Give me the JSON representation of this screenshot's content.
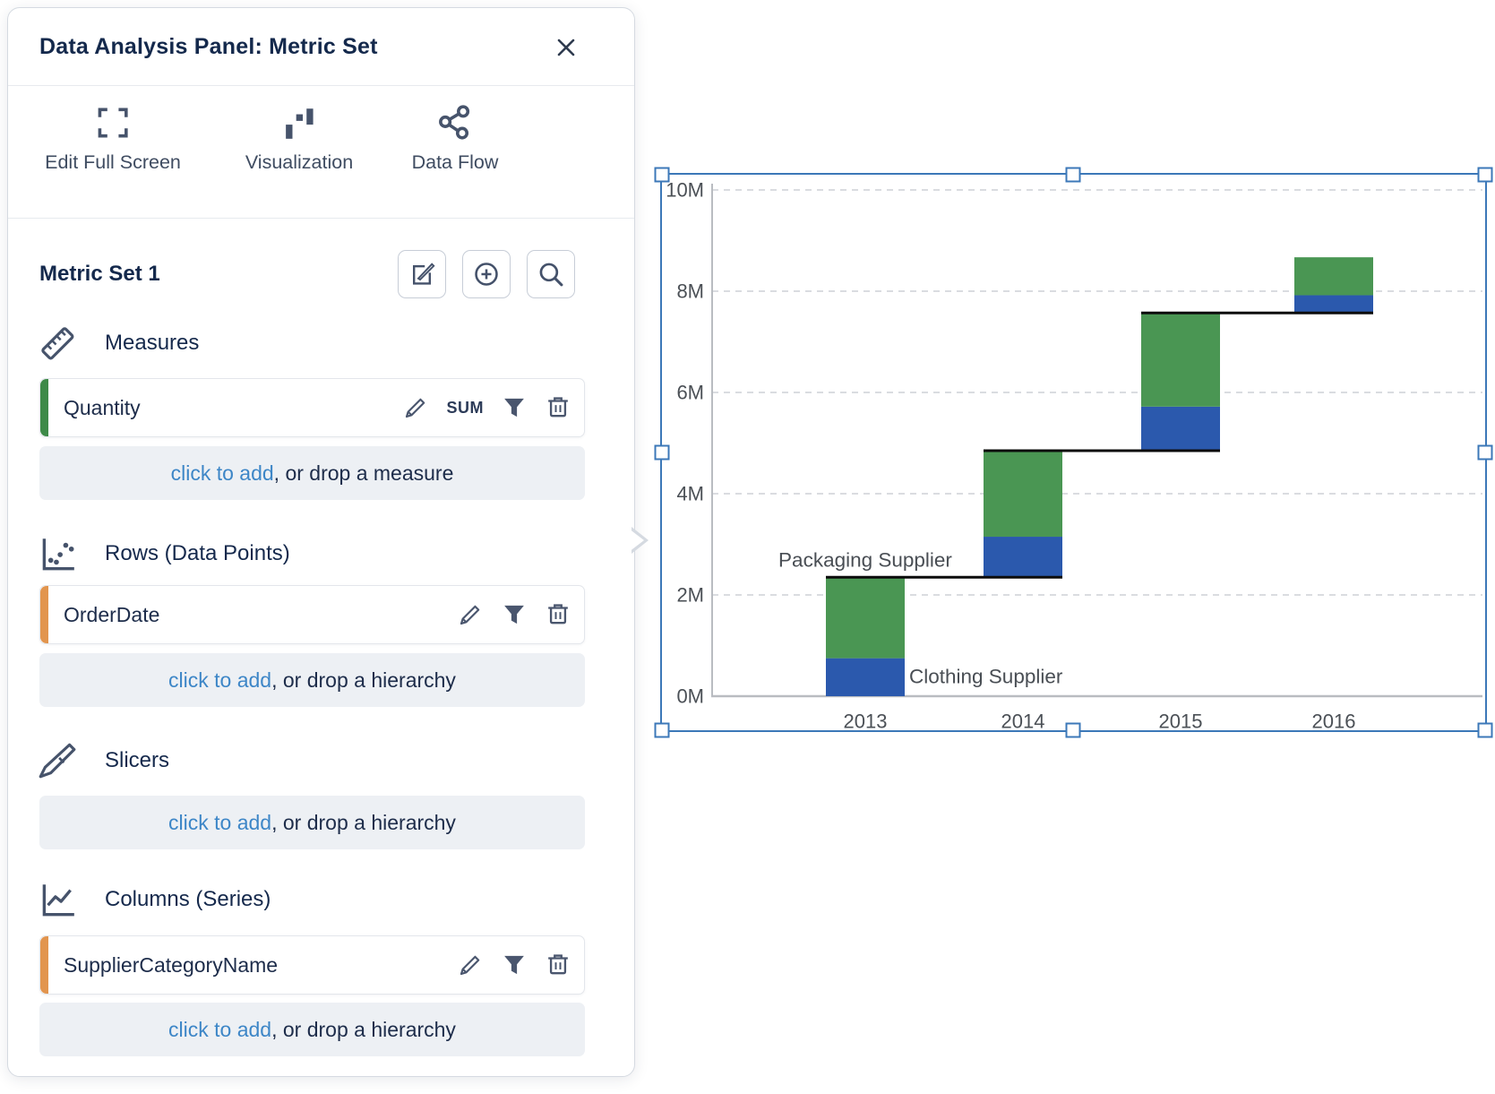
{
  "panel": {
    "title": "Data Analysis Panel: Metric Set",
    "toolbar": {
      "items": [
        {
          "id": "edit-full-screen",
          "label": "Edit Full Screen"
        },
        {
          "id": "visualization",
          "label": "Visualization"
        },
        {
          "id": "data-flow",
          "label": "Data Flow"
        }
      ]
    },
    "metric_set": {
      "title": "Metric Set 1"
    },
    "sections": [
      {
        "id": "measures",
        "label": "Measures",
        "fields": [
          {
            "name": "Quantity",
            "aggregate": "SUM",
            "accent_color": "#3e8a48"
          }
        ],
        "placeholder_link": "click to add",
        "placeholder_rest": ", or drop a measure"
      },
      {
        "id": "rows",
        "label": "Rows (Data Points)",
        "fields": [
          {
            "name": "OrderDate",
            "accent_color": "#e2954e"
          }
        ],
        "placeholder_link": "click to add",
        "placeholder_rest": ", or drop a hierarchy"
      },
      {
        "id": "slicers",
        "label": "Slicers",
        "fields": [],
        "placeholder_link": "click to add",
        "placeholder_rest": ", or drop a hierarchy"
      },
      {
        "id": "columns",
        "label": "Columns (Series)",
        "fields": [
          {
            "name": "SupplierCategoryName",
            "accent_color": "#e2954e"
          }
        ],
        "placeholder_link": "click to add",
        "placeholder_rest": ", or drop a hierarchy"
      }
    ]
  },
  "colors": {
    "bar_blue": "#2b59ad",
    "bar_green": "#4a9653",
    "selection_blue": "#3c78b8",
    "link_blue": "#3d86c7",
    "accent_green": "#3e8a48",
    "accent_orange": "#e2954e"
  },
  "chart_data": {
    "type": "bar",
    "subtype": "stacked-waterfall",
    "categories": [
      "2013",
      "2014",
      "2015",
      "2016"
    ],
    "series": [
      {
        "name": "Clothing Supplier",
        "color": "#2b59ad",
        "values": [
          0.75,
          0.8,
          0.87,
          0.35
        ]
      },
      {
        "name": "Packaging Supplier",
        "color": "#4a9653",
        "values": [
          1.6,
          1.7,
          1.85,
          0.75
        ]
      }
    ],
    "cumulative_totals": [
      2.35,
      4.85,
      7.57,
      8.67
    ],
    "units": "M",
    "ylim": [
      0,
      10
    ],
    "yticks": [
      0,
      2,
      4,
      6,
      8,
      10
    ],
    "ytick_labels": [
      "0M",
      "2M",
      "4M",
      "6M",
      "8M",
      "10M"
    ],
    "grid": "dashed-horizontal",
    "legend": "none",
    "annotations": [
      {
        "text": "Packaging Supplier",
        "category": 0,
        "value": 2.69,
        "placement": "above-center"
      },
      {
        "text": "Clothing Supplier",
        "category": 0,
        "value": 0.39,
        "placement": "right-of-bar"
      }
    ]
  }
}
